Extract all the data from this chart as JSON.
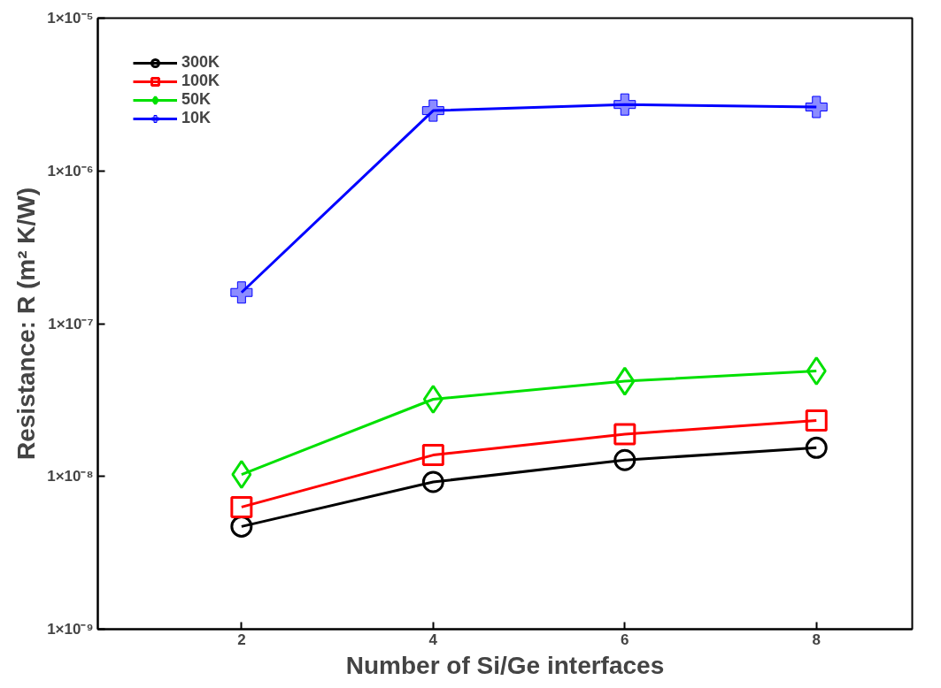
{
  "chart_data": {
    "type": "line",
    "xlabel": "Number of Si/Ge interfaces",
    "ylabel": "Resistance: R (m² K/W)",
    "log": "y",
    "x": [
      2,
      4,
      6,
      8
    ],
    "xlim": [
      0.5,
      9
    ],
    "xticks": [
      2,
      4,
      6,
      8
    ],
    "ylim": [
      1e-09,
      1e-05
    ],
    "yticks": [
      {
        "value": 1e-09,
        "label": "1×10⁻⁹"
      },
      {
        "value": 1e-08,
        "label": "1×10⁻⁸"
      },
      {
        "value": 1e-07,
        "label": "1×10⁻⁷"
      },
      {
        "value": 1e-06,
        "label": "1×10⁻⁶"
      },
      {
        "value": 1e-05,
        "label": "1×10⁻⁵"
      }
    ],
    "grid": false,
    "legend": "top left",
    "line_style": "solid",
    "series": [
      {
        "name": "300K",
        "color": "#000000",
        "marker": "circle",
        "values": [
          4.7e-09,
          9.2e-09,
          1.28e-08,
          1.54e-08
        ]
      },
      {
        "name": "100K",
        "color": "#ff0000",
        "marker": "square",
        "values": [
          6.3e-09,
          1.38e-08,
          1.89e-08,
          2.32e-08
        ]
      },
      {
        "name": "50K",
        "color": "#00e000",
        "marker": "diamond",
        "values": [
          1.03e-08,
          3.2e-08,
          4.2e-08,
          4.9e-08
        ]
      },
      {
        "name": "10K",
        "color": "#0000ff",
        "marker": "cross",
        "values": [
          1.6e-07,
          2.48e-06,
          2.72e-06,
          2.62e-06
        ]
      }
    ]
  }
}
